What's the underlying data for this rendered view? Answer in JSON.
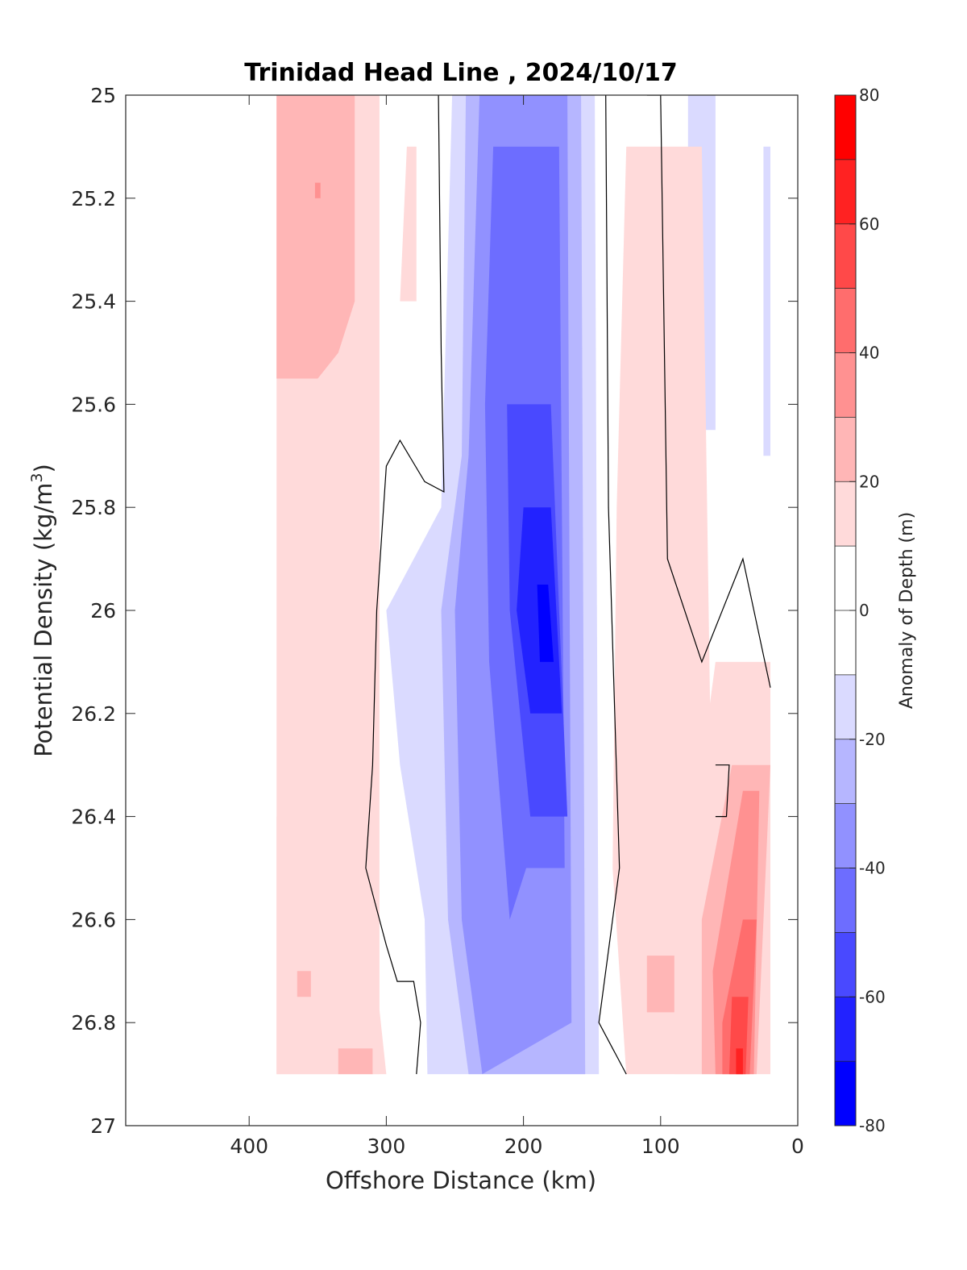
{
  "chart_data": {
    "type": "heatmap",
    "title": "Trinidad Head Line , 2024/10/17",
    "xlabel": "Offshore Distance (km)",
    "ylabel_main": "Potential Density (kg/m",
    "ylabel_sup": "3",
    "ylabel_end": ")",
    "colorbar_label": "Anomaly of Depth (m)",
    "xlim": [
      490,
      0
    ],
    "ylim": [
      27,
      25
    ],
    "y_reversed": true,
    "x_reversed": true,
    "x_ticks": [
      400,
      300,
      200,
      100,
      0
    ],
    "x_tick_labels": [
      "400",
      "300",
      "200",
      "100",
      "0"
    ],
    "y_ticks": [
      25,
      25.2,
      25.4,
      25.6,
      25.8,
      26,
      26.2,
      26.4,
      26.6,
      26.8,
      27
    ],
    "y_tick_labels": [
      "25",
      "25.2",
      "25.4",
      "25.6",
      "25.8",
      "26",
      "26.2",
      "26.4",
      "26.6",
      "26.8",
      "27"
    ],
    "colorbar_range": [
      -80,
      80
    ],
    "colorbar_ticks": [
      80,
      60,
      40,
      20,
      0,
      -20,
      -40,
      -60,
      -80
    ],
    "colorbar_tick_labels": [
      "80",
      "60",
      "40",
      "20",
      "0",
      "-20",
      "-40",
      "-60",
      "-80"
    ],
    "colorbar_levels": [
      {
        "from": 70,
        "to": 80,
        "color": "#ff0000"
      },
      {
        "from": 60,
        "to": 70,
        "color": "#ff2222"
      },
      {
        "from": 50,
        "to": 60,
        "color": "#ff4949"
      },
      {
        "from": 40,
        "to": 50,
        "color": "#ff6d6d"
      },
      {
        "from": 30,
        "to": 40,
        "color": "#ff9191"
      },
      {
        "from": 20,
        "to": 30,
        "color": "#ffb6b6"
      },
      {
        "from": 10,
        "to": 20,
        "color": "#ffdada"
      },
      {
        "from": 0,
        "to": 10,
        "color": "#ffffff"
      },
      {
        "from": -10,
        "to": 0,
        "color": "#ffffff"
      },
      {
        "from": -20,
        "to": -10,
        "color": "#dadaff"
      },
      {
        "from": -30,
        "to": -20,
        "color": "#b6b6ff"
      },
      {
        "from": -40,
        "to": -30,
        "color": "#9191ff"
      },
      {
        "from": -50,
        "to": -40,
        "color": "#6d6dff"
      },
      {
        "from": -60,
        "to": -50,
        "color": "#4949ff"
      },
      {
        "from": -70,
        "to": -60,
        "color": "#2222ff"
      },
      {
        "from": -80,
        "to": -70,
        "color": "#0000ff"
      }
    ],
    "data_extent": {
      "x": [
        380,
        20
      ],
      "y": [
        25,
        26.9
      ]
    },
    "regions": [
      {
        "level": 15,
        "points": [
          [
            380,
            25
          ],
          [
            305,
            25
          ],
          [
            305,
            26.9
          ],
          [
            380,
            26.9
          ]
        ]
      },
      {
        "level": 25,
        "points": [
          [
            380,
            25
          ],
          [
            323,
            25
          ],
          [
            323,
            25.4
          ],
          [
            335,
            25.5
          ],
          [
            350,
            25.55
          ],
          [
            380,
            25.55
          ]
        ]
      },
      {
        "level": 35,
        "points": [
          [
            352,
            25.17
          ],
          [
            348,
            25.17
          ],
          [
            348,
            25.2
          ],
          [
            352,
            25.2
          ]
        ]
      },
      {
        "level": 15,
        "points": [
          [
            285,
            25.1
          ],
          [
            278,
            25.1
          ],
          [
            278,
            25.4
          ],
          [
            290,
            25.4
          ]
        ]
      },
      {
        "level": 5,
        "points": [
          [
            250,
            25
          ],
          [
            140,
            25
          ],
          [
            140,
            26.9
          ],
          [
            270,
            26.9
          ],
          [
            280,
            26.4
          ],
          [
            300,
            26.1
          ],
          [
            305,
            25.7
          ],
          [
            290,
            25.7
          ]
        ]
      },
      {
        "level": -15,
        "points": [
          [
            252,
            25
          ],
          [
            148,
            25
          ],
          [
            145,
            26.9
          ],
          [
            270,
            26.9
          ],
          [
            272,
            26.6
          ],
          [
            290,
            26.3
          ],
          [
            300,
            26.0
          ],
          [
            260,
            25.8
          ]
        ]
      },
      {
        "level": -25,
        "points": [
          [
            242,
            25
          ],
          [
            158,
            25
          ],
          [
            155,
            26.9
          ],
          [
            240,
            26.9
          ],
          [
            255,
            26.6
          ],
          [
            260,
            26.0
          ],
          [
            245,
            25.7
          ]
        ]
      },
      {
        "level": -35,
        "points": [
          [
            232,
            25
          ],
          [
            168,
            25
          ],
          [
            165,
            26.8
          ],
          [
            230,
            26.9
          ],
          [
            245,
            26.6
          ],
          [
            250,
            26.0
          ],
          [
            240,
            25.7
          ]
        ]
      },
      {
        "level": -45,
        "points": [
          [
            222,
            25.1
          ],
          [
            174,
            25.1
          ],
          [
            170,
            26.5
          ],
          [
            198,
            26.5
          ],
          [
            210,
            26.6
          ],
          [
            225,
            26.1
          ],
          [
            228,
            25.6
          ]
        ]
      },
      {
        "level": -55,
        "points": [
          [
            212,
            25.6
          ],
          [
            180,
            25.6
          ],
          [
            168,
            26.4
          ],
          [
            195,
            26.4
          ],
          [
            210,
            26.0
          ]
        ]
      },
      {
        "level": -65,
        "points": [
          [
            200,
            25.8
          ],
          [
            180,
            25.8
          ],
          [
            172,
            26.2
          ],
          [
            195,
            26.2
          ],
          [
            205,
            26.0
          ]
        ]
      },
      {
        "level": -75,
        "points": [
          [
            190,
            25.95
          ],
          [
            182,
            25.95
          ],
          [
            178,
            26.1
          ],
          [
            188,
            26.1
          ]
        ]
      },
      {
        "level": -15,
        "points": [
          [
            80,
            25
          ],
          [
            60,
            25
          ],
          [
            60,
            25.65
          ],
          [
            80,
            25.65
          ]
        ]
      },
      {
        "level": -15,
        "points": [
          [
            25,
            25.1
          ],
          [
            20,
            25.1
          ],
          [
            20,
            25.7
          ],
          [
            25,
            25.7
          ]
        ]
      },
      {
        "level": 15,
        "points": [
          [
            125,
            25.1
          ],
          [
            70,
            25.1
          ],
          [
            60,
            26.9
          ],
          [
            125,
            26.9
          ],
          [
            135,
            26.5
          ],
          [
            132,
            25.8
          ]
        ]
      },
      {
        "level": 25,
        "points": [
          [
            110,
            26.67
          ],
          [
            90,
            26.67
          ],
          [
            90,
            26.78
          ],
          [
            110,
            26.78
          ]
        ]
      },
      {
        "level": 15,
        "points": [
          [
            60,
            26.1
          ],
          [
            20,
            26.1
          ],
          [
            20,
            26.9
          ],
          [
            90,
            26.9
          ],
          [
            80,
            26.5
          ]
        ]
      },
      {
        "level": 25,
        "points": [
          [
            48,
            26.3
          ],
          [
            20,
            26.3
          ],
          [
            30,
            26.9
          ],
          [
            70,
            26.9
          ],
          [
            70,
            26.6
          ]
        ]
      },
      {
        "level": 35,
        "points": [
          [
            40,
            26.35
          ],
          [
            28,
            26.35
          ],
          [
            32,
            26.9
          ],
          [
            60,
            26.9
          ],
          [
            62,
            26.7
          ]
        ]
      },
      {
        "level": 45,
        "points": [
          [
            40,
            26.6
          ],
          [
            30,
            26.6
          ],
          [
            35,
            26.9
          ],
          [
            55,
            26.9
          ],
          [
            55,
            26.8
          ]
        ]
      },
      {
        "level": 55,
        "points": [
          [
            48,
            26.75
          ],
          [
            36,
            26.75
          ],
          [
            38,
            26.9
          ],
          [
            50,
            26.9
          ]
        ]
      },
      {
        "level": 65,
        "points": [
          [
            45,
            26.85
          ],
          [
            40,
            26.85
          ],
          [
            40,
            26.9
          ],
          [
            45,
            26.9
          ]
        ]
      },
      {
        "level": 15,
        "points": [
          [
            380,
            26.4
          ],
          [
            320,
            26.4
          ],
          [
            300,
            26.9
          ],
          [
            380,
            26.9
          ]
        ]
      },
      {
        "level": 25,
        "points": [
          [
            365,
            26.7
          ],
          [
            355,
            26.7
          ],
          [
            355,
            26.75
          ],
          [
            365,
            26.75
          ]
        ]
      },
      {
        "level": 25,
        "points": [
          [
            335,
            26.85
          ],
          [
            310,
            26.85
          ],
          [
            310,
            26.9
          ],
          [
            335,
            26.9
          ]
        ]
      }
    ],
    "contours": [
      {
        "level": 0,
        "points": [
          [
            262,
            25
          ],
          [
            260,
            25.5
          ],
          [
            258,
            25.77
          ],
          [
            272,
            25.75
          ],
          [
            290,
            25.67
          ],
          [
            300,
            25.72
          ],
          [
            307,
            26.0
          ],
          [
            310,
            26.3
          ],
          [
            315,
            26.5
          ],
          [
            300,
            26.65
          ],
          [
            292,
            26.72
          ],
          [
            280,
            26.72
          ],
          [
            275,
            26.8
          ],
          [
            278,
            26.9
          ]
        ]
      },
      {
        "level": 0,
        "points": [
          [
            140,
            25
          ],
          [
            138,
            25.8
          ],
          [
            130,
            26.5
          ],
          [
            145,
            26.8
          ],
          [
            125,
            26.9
          ]
        ]
      },
      {
        "level": 0,
        "points": [
          [
            110,
            25
          ],
          [
            100,
            25
          ],
          [
            95,
            25.9
          ],
          [
            70,
            26.1
          ],
          [
            40,
            25.9
          ],
          [
            20,
            26.15
          ]
        ]
      },
      {
        "level": 0,
        "points": [
          [
            60,
            26.3
          ],
          [
            50,
            26.3
          ],
          [
            52,
            26.4
          ],
          [
            60,
            26.4
          ]
        ]
      }
    ]
  }
}
